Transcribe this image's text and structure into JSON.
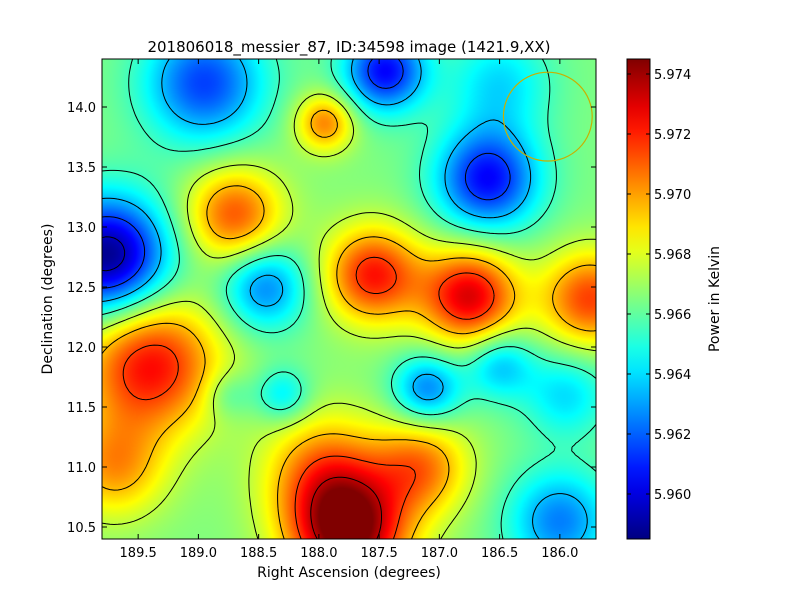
{
  "chart_data": {
    "type": "heatmap",
    "title": "201806018_messier_87, ID:34598 image (1421.9,XX)",
    "xlabel": "Right Ascension (degrees)",
    "ylabel": "Declination (degrees)",
    "colorbar_label": "Power in Kelvin",
    "colormap": "jet",
    "xlim": [
      189.8,
      185.7
    ],
    "ylim": [
      10.4,
      14.4
    ],
    "x_ticks": [
      {
        "value": 189.5,
        "label": "189.5"
      },
      {
        "value": 189.0,
        "label": "189.0"
      },
      {
        "value": 188.5,
        "label": "188.5"
      },
      {
        "value": 188.0,
        "label": "188.0"
      },
      {
        "value": 187.5,
        "label": "187.5"
      },
      {
        "value": 187.0,
        "label": "187.0"
      },
      {
        "value": 186.5,
        "label": "186.5"
      },
      {
        "value": 186.0,
        "label": "186.0"
      }
    ],
    "y_ticks": [
      {
        "value": 10.5,
        "label": "10.5"
      },
      {
        "value": 11.0,
        "label": "11.0"
      },
      {
        "value": 11.5,
        "label": "11.5"
      },
      {
        "value": 12.0,
        "label": "12.0"
      },
      {
        "value": 12.5,
        "label": "12.5"
      },
      {
        "value": 13.0,
        "label": "13.0"
      },
      {
        "value": 13.5,
        "label": "13.5"
      },
      {
        "value": 14.0,
        "label": "14.0"
      }
    ],
    "colorbar_range": [
      5.9585,
      5.9745
    ],
    "colorbar_ticks": [
      {
        "value": 5.96,
        "label": "5.960"
      },
      {
        "value": 5.962,
        "label": "5.962"
      },
      {
        "value": 5.964,
        "label": "5.964"
      },
      {
        "value": 5.966,
        "label": "5.966"
      },
      {
        "value": 5.968,
        "label": "5.968"
      },
      {
        "value": 5.97,
        "label": "5.970"
      },
      {
        "value": 5.972,
        "label": "5.972"
      },
      {
        "value": 5.974,
        "label": "5.974"
      }
    ],
    "baseline": 5.9665,
    "features": [
      {
        "ra": 187.75,
        "dec": 10.45,
        "value": 5.9745,
        "spread": 0.34
      },
      {
        "ra": 187.95,
        "dec": 10.95,
        "value": 5.9705,
        "spread": 0.35
      },
      {
        "ra": 187.15,
        "dec": 11.0,
        "value": 5.9705,
        "spread": 0.28
      },
      {
        "ra": 189.4,
        "dec": 11.85,
        "value": 5.9725,
        "spread": 0.4
      },
      {
        "ra": 189.7,
        "dec": 11.0,
        "value": 5.97,
        "spread": 0.3
      },
      {
        "ra": 187.55,
        "dec": 12.6,
        "value": 5.9722,
        "spread": 0.28
      },
      {
        "ra": 186.75,
        "dec": 12.42,
        "value": 5.973,
        "spread": 0.28
      },
      {
        "ra": 185.75,
        "dec": 12.4,
        "value": 5.9715,
        "spread": 0.28
      },
      {
        "ra": 188.7,
        "dec": 13.1,
        "value": 5.9712,
        "spread": 0.28
      },
      {
        "ra": 187.95,
        "dec": 13.87,
        "value": 5.9705,
        "spread": 0.17
      },
      {
        "ra": 189.75,
        "dec": 12.75,
        "value": 5.9585,
        "spread": 0.35
      },
      {
        "ra": 186.6,
        "dec": 13.4,
        "value": 5.9605,
        "spread": 0.3
      },
      {
        "ra": 187.45,
        "dec": 14.3,
        "value": 5.9605,
        "spread": 0.24
      },
      {
        "ra": 188.95,
        "dec": 14.2,
        "value": 5.9615,
        "spread": 0.35
      },
      {
        "ra": 188.45,
        "dec": 12.5,
        "value": 5.9625,
        "spread": 0.25
      },
      {
        "ra": 187.1,
        "dec": 11.65,
        "value": 5.9625,
        "spread": 0.2
      },
      {
        "ra": 186.5,
        "dec": 11.85,
        "value": 5.9635,
        "spread": 0.2
      },
      {
        "ra": 188.3,
        "dec": 11.6,
        "value": 5.964,
        "spread": 0.16
      },
      {
        "ra": 188.75,
        "dec": 11.6,
        "value": 5.965,
        "spread": 0.14
      },
      {
        "ra": 186.0,
        "dec": 10.55,
        "value": 5.9625,
        "spread": 0.3
      },
      {
        "ra": 185.95,
        "dec": 11.6,
        "value": 5.964,
        "spread": 0.25
      },
      {
        "ra": 186.5,
        "dec": 14.2,
        "value": 5.964,
        "spread": 0.3
      }
    ],
    "contour_levels": [
      5.9595,
      5.9615,
      5.9635,
      5.9655,
      5.9675,
      5.9695,
      5.9715,
      5.9735
    ],
    "marker_circle": {
      "ra": 186.1,
      "dec": 13.92,
      "radius_deg": 0.37,
      "color": "#c8b000"
    }
  }
}
